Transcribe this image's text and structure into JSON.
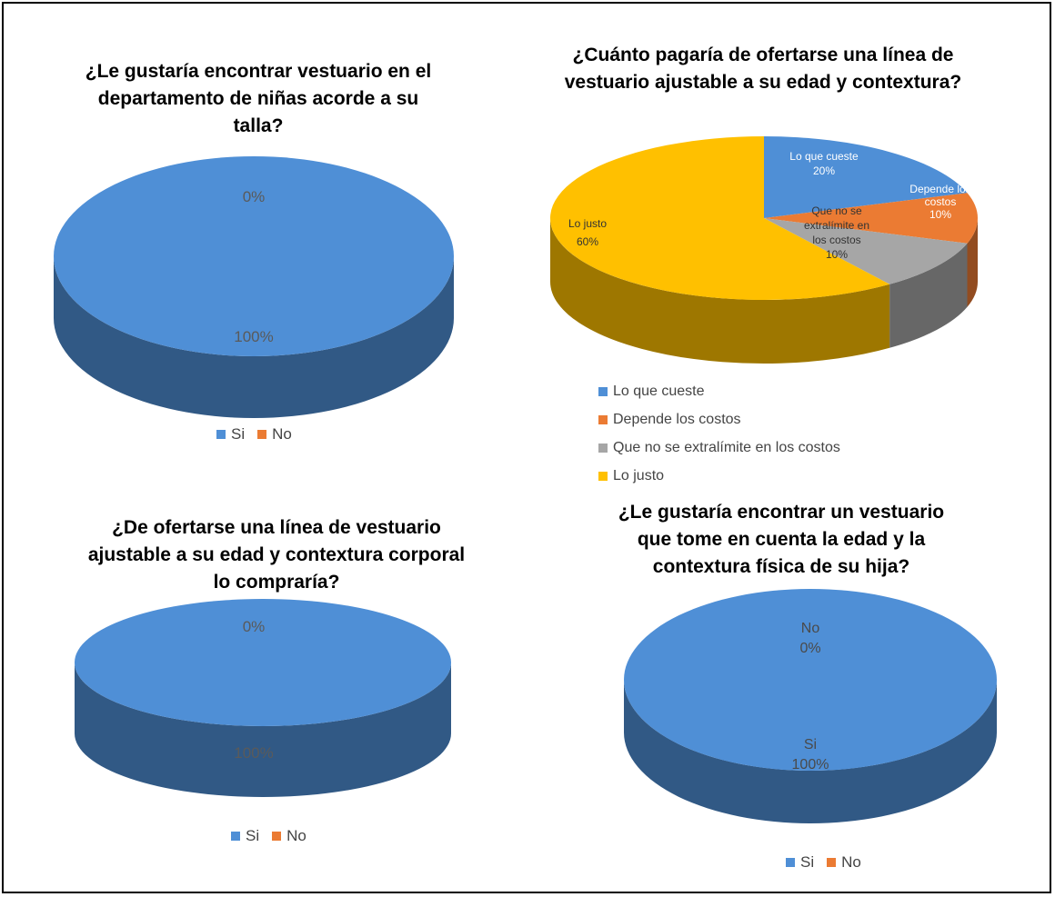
{
  "colors": {
    "si": "#4F8FD6",
    "no": "#EB7B33",
    "gray": "#A6A6A6",
    "yellow": "#FFC000"
  },
  "chart_data": [
    {
      "type": "pie",
      "title": "¿Le gustaría encontrar vestuario en el departamento de niñas acorde a su talla?",
      "title_lines": [
        "¿Le gustaría encontrar vestuario en el",
        "departamento de niñas acorde a su",
        "talla?"
      ],
      "categories": [
        "Si",
        "No"
      ],
      "values": [
        100,
        0
      ],
      "data_labels": [
        "100%",
        "0%"
      ],
      "legend": [
        "Si",
        "No"
      ],
      "legend_position": "bottom"
    },
    {
      "type": "pie",
      "title": "¿Cuánto pagaría de ofertarse una línea de vestuario ajustable a su edad y contextura?",
      "title_lines": [
        "¿Cuánto pagaría de ofertarse una línea de",
        "vestuario ajustable a su edad y contextura?"
      ],
      "categories": [
        "Lo que  cueste",
        "Depende los costos",
        "Que no se extralímite en los costos",
        "Lo justo"
      ],
      "values": [
        20,
        10,
        10,
        60
      ],
      "data_labels": [
        [
          "Lo que  cueste",
          "20%"
        ],
        [
          "Depende los",
          "costos",
          "10%"
        ],
        [
          "Que no se",
          "extralímite en",
          "los costos",
          "10%"
        ],
        [
          "Lo justo",
          "60%"
        ]
      ],
      "legend": [
        "Lo que  cueste",
        "Depende los costos",
        "Que no se extralímite en los costos",
        "Lo justo"
      ],
      "legend_position": "bottom"
    },
    {
      "type": "pie",
      "title": "¿De ofertarse una línea de vestuario ajustable a su edad y contextura corporal lo compraría?",
      "title_lines": [
        "¿De ofertarse una línea de vestuario",
        "ajustable a su edad y contextura corporal",
        "lo compraría?"
      ],
      "categories": [
        "Si",
        "No"
      ],
      "values": [
        100,
        0
      ],
      "data_labels": [
        "100%",
        "0%"
      ],
      "legend": [
        "Si",
        "No"
      ],
      "legend_position": "bottom"
    },
    {
      "type": "pie",
      "title": "¿Le gustaría encontrar un vestuario que tome en cuenta la edad y la contextura física de su hija?",
      "title_lines": [
        "¿Le gustaría encontrar  un vestuario",
        "que tome en cuenta la edad y la",
        "contextura física de su hija?"
      ],
      "categories": [
        "Si",
        "No"
      ],
      "values": [
        100,
        0
      ],
      "data_labels": [
        [
          "Si",
          "100%"
        ],
        [
          "No",
          "0%"
        ]
      ],
      "legend": [
        "Si",
        "No"
      ],
      "legend_position": "bottom"
    }
  ]
}
